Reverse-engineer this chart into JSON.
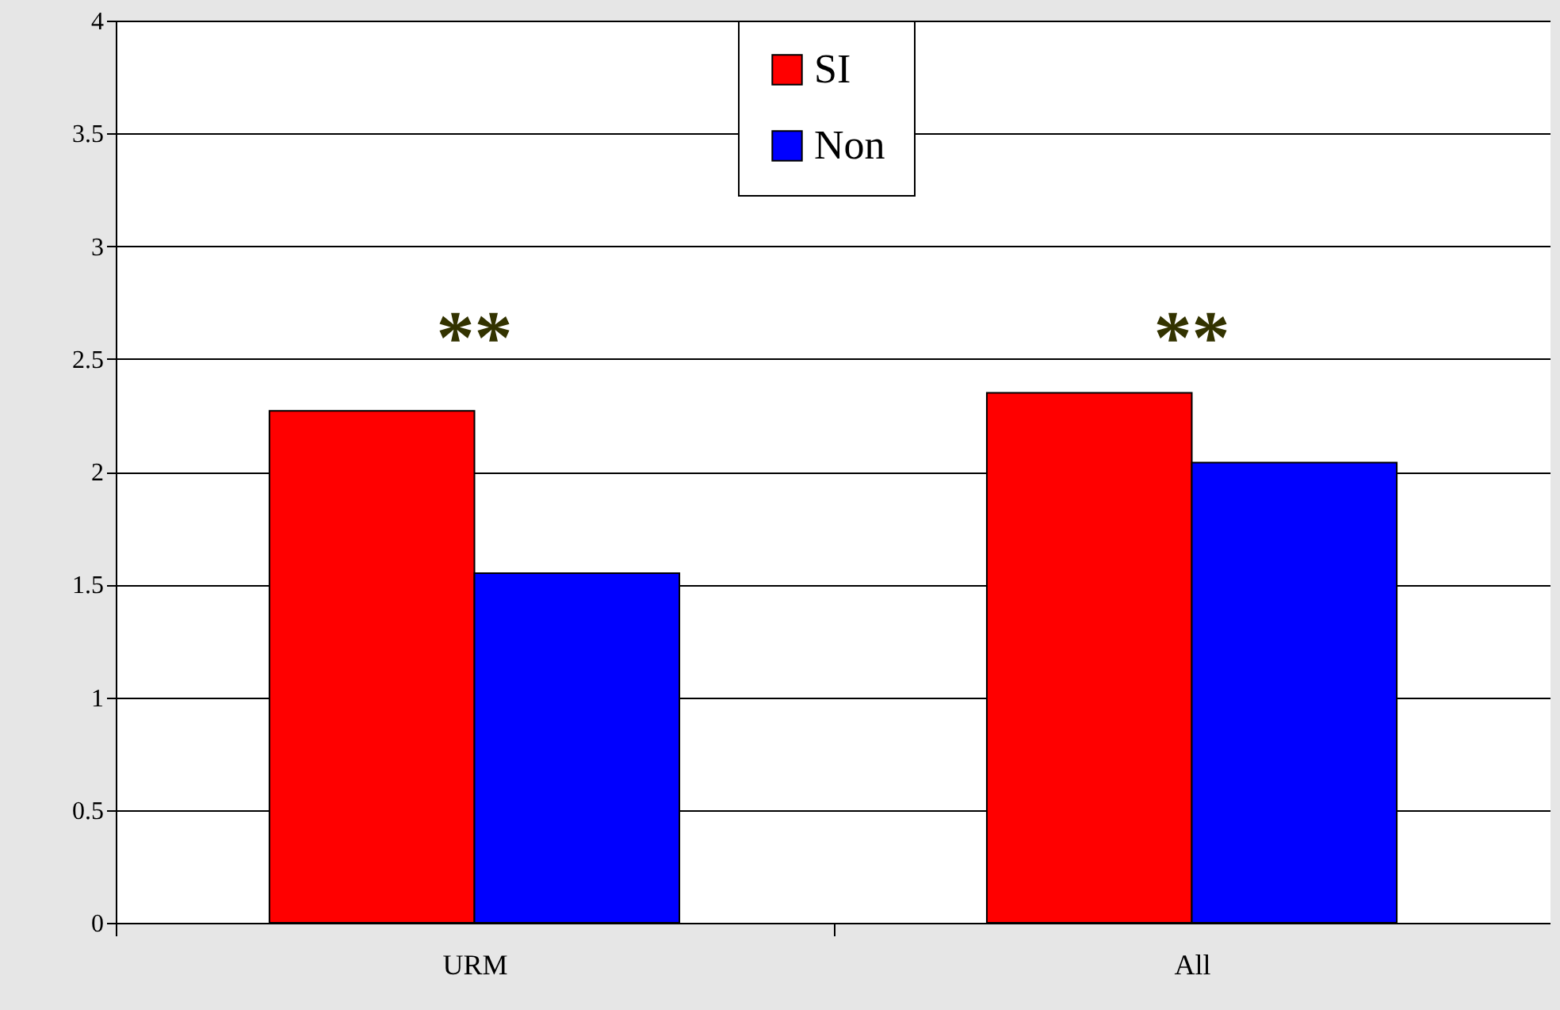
{
  "chart_data": {
    "type": "bar",
    "categories": [
      "URM",
      "All"
    ],
    "series": [
      {
        "name": "SI",
        "color": "#ff0000",
        "values": [
          2.27,
          2.35
        ]
      },
      {
        "name": "Non",
        "color": "#0000ff",
        "values": [
          1.55,
          2.04
        ]
      }
    ],
    "ylim": [
      0,
      4
    ],
    "yticks": [
      0,
      0.5,
      1,
      1.5,
      2,
      2.5,
      3,
      3.5,
      4
    ],
    "grid": "y",
    "legend": "top",
    "annotations": [
      "**",
      "**"
    ]
  }
}
